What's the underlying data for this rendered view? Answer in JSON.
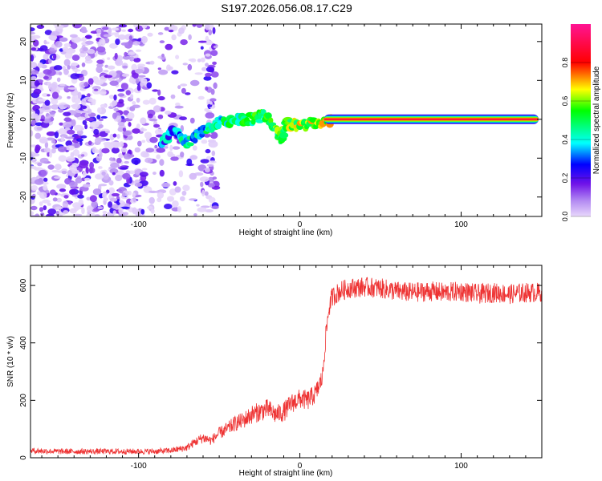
{
  "title": "S197.2026.056.08.17.C29",
  "chart_data": [
    {
      "type": "heatmap",
      "xlabel": "Height of straight line (km)",
      "ylabel": "Frequency (Hz)",
      "xlim": [
        -167,
        150
      ],
      "ylim": [
        -25,
        24.5
      ],
      "xticks": [
        -100,
        0,
        100
      ],
      "yticks": [
        -20,
        -10,
        0,
        10,
        20
      ],
      "colorbar": {
        "label": "Normalized spectral amplitude",
        "range": [
          0,
          1
        ],
        "ticks": [
          0.0,
          0.2,
          0.4,
          0.6,
          0.8
        ]
      },
      "features": {
        "noise_region_km": [
          -167,
          -52
        ],
        "onset_track": [
          {
            "x": -86,
            "y": -6
          },
          {
            "x": -78,
            "y": -3
          },
          {
            "x": -70,
            "y": -6
          },
          {
            "x": -60,
            "y": -3
          },
          {
            "x": -50,
            "y": -1
          },
          {
            "x": -40,
            "y": 0
          },
          {
            "x": -30,
            "y": 0
          },
          {
            "x": -22,
            "y": 1
          },
          {
            "x": -15,
            "y": -2
          },
          {
            "x": -12,
            "y": -5
          },
          {
            "x": -8,
            "y": -1
          },
          {
            "x": 0,
            "y": -1.5
          },
          {
            "x": 10,
            "y": -1
          },
          {
            "x": 20,
            "y": 0
          }
        ],
        "carrier_line": {
          "frequency": 0,
          "from_km": 15,
          "to_km": 148,
          "amplitude": 0.95
        }
      }
    },
    {
      "type": "line",
      "xlabel": "Height of straight line (km)",
      "ylabel": "SNR (10 * v/v)",
      "xlim": [
        -167,
        150
      ],
      "ylim": [
        0,
        670
      ],
      "xticks": [
        -100,
        0,
        100
      ],
      "yticks": [
        0,
        200,
        400,
        600
      ],
      "color": "#ee3333",
      "series": [
        {
          "name": "SNR",
          "x": [
            -167,
            -150,
            -130,
            -110,
            -90,
            -80,
            -70,
            -65,
            -60,
            -55,
            -50,
            -45,
            -40,
            -35,
            -30,
            -25,
            -20,
            -15,
            -10,
            -5,
            0,
            5,
            10,
            14,
            16,
            18,
            20,
            25,
            30,
            40,
            50,
            60,
            70,
            80,
            90,
            100,
            110,
            120,
            130,
            140,
            150
          ],
          "values": [
            25,
            22,
            22,
            22,
            22,
            25,
            35,
            55,
            70,
            60,
            85,
            100,
            120,
            130,
            150,
            160,
            170,
            150,
            160,
            190,
            205,
            200,
            225,
            280,
            420,
            520,
            560,
            580,
            590,
            595,
            590,
            580,
            575,
            580,
            575,
            580,
            570,
            575,
            570,
            575,
            575
          ],
          "noise_amplitude": 35
        }
      ]
    }
  ]
}
